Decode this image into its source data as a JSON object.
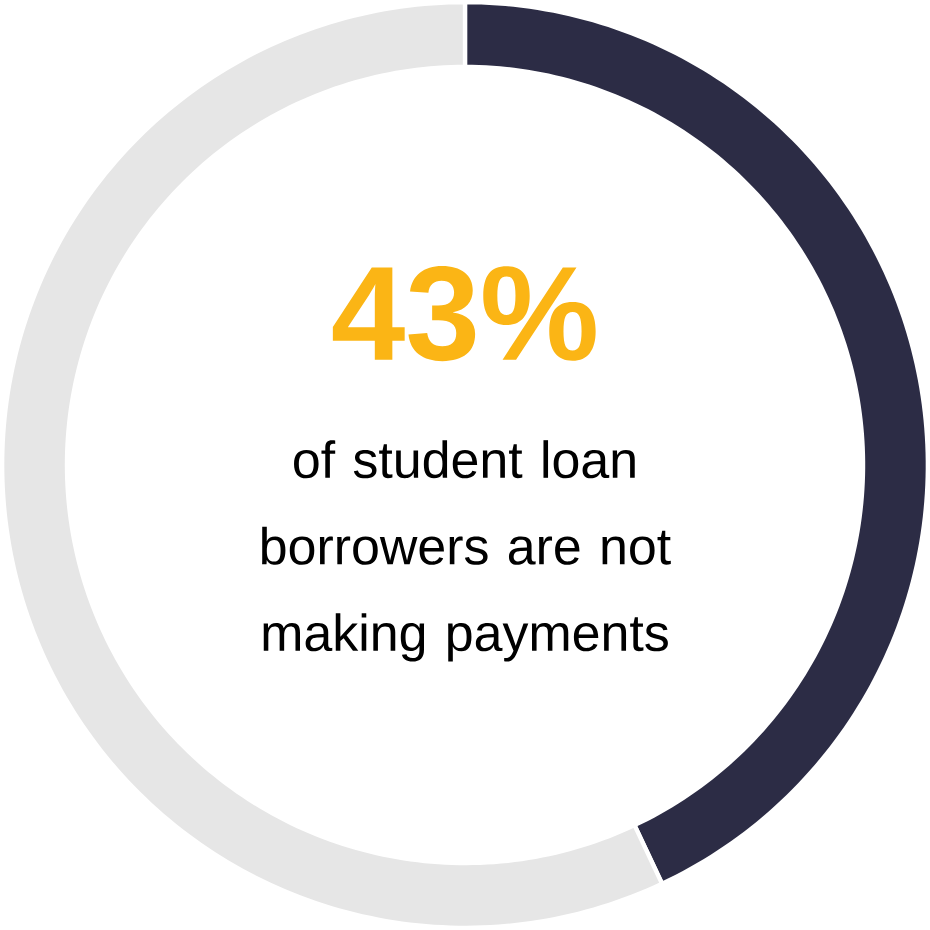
{
  "chart_data": {
    "type": "donut",
    "categories": [
      null,
      null
    ],
    "values": [
      43,
      57
    ],
    "colors": [
      "#2c2c45",
      "#e6e6e6"
    ],
    "value_labels": [
      "43%",
      null
    ],
    "annotations": [
      "of student loan borrowers are not making payments"
    ]
  }
}
